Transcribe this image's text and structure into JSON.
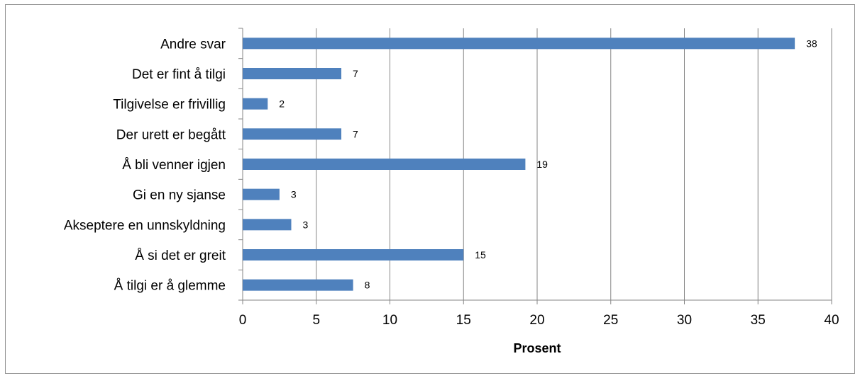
{
  "chart_data": {
    "type": "bar",
    "orientation": "horizontal",
    "categories": [
      "Andre svar",
      "Det er fint å tilgi",
      "Tilgivelse er frivillig",
      "Der urett er begått",
      "Å bli venner igjen",
      "Gi en ny sjanse",
      "Akseptere en unnskyldning",
      "Å si det er greit",
      "Å tilgi er å glemme"
    ],
    "values": [
      37.5,
      6.7,
      1.7,
      6.7,
      19.2,
      2.5,
      3.3,
      15.0,
      7.5
    ],
    "data_labels": [
      "38",
      "7",
      "2",
      "7",
      "19",
      "3",
      "3",
      "15",
      "8"
    ],
    "xlabel": "Prosent",
    "ylabel": "",
    "xlim": [
      0,
      40
    ],
    "x_ticks": [
      "0",
      "5",
      "10",
      "15",
      "20",
      "25",
      "30",
      "35",
      "40"
    ],
    "grid": "vertical",
    "bar_color": "#4f81bd",
    "grid_color": "#868686"
  }
}
